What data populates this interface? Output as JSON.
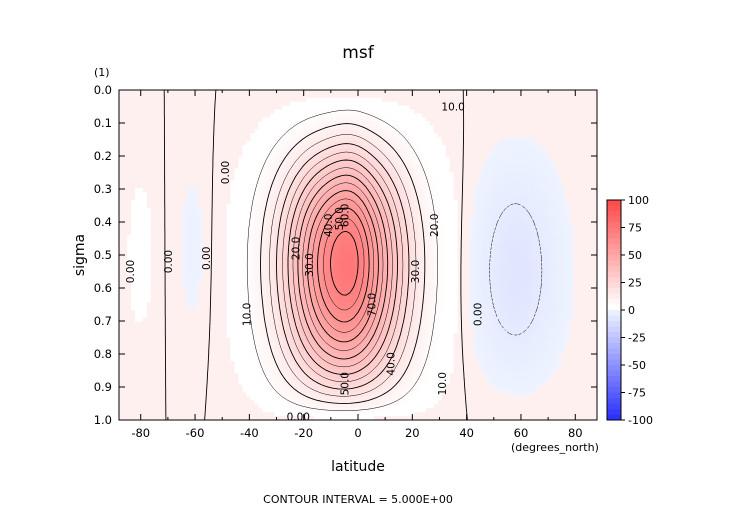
{
  "chart_data": {
    "type": "heatmap",
    "title": "msf",
    "xlabel": "latitude",
    "ylabel": "sigma",
    "x_units": "(degrees_north)",
    "y_units": "(1)",
    "footer": "CONTOUR INTERVAL = 5.000E+00",
    "xlim": [
      -88,
      88
    ],
    "ylim": [
      1.0,
      0.0
    ],
    "y_reversed": true,
    "x_ticks": [
      -80,
      -60,
      -40,
      -20,
      0,
      20,
      40,
      60,
      80
    ],
    "x_tick_labels": [
      "-80",
      "-60",
      "-40",
      "-20",
      "0",
      "20",
      "40",
      "60",
      "80"
    ],
    "y_ticks": [
      0.0,
      0.1,
      0.2,
      0.3,
      0.4,
      0.5,
      0.6,
      0.7,
      0.8,
      0.9,
      1.0
    ],
    "y_tick_labels": [
      "0.0",
      "0.1",
      "0.2",
      "0.3",
      "0.4",
      "0.5",
      "0.6",
      "0.7",
      "0.8",
      "0.9",
      "1.0"
    ],
    "contour_interval": 5,
    "colorbar": {
      "min": -100,
      "max": 100,
      "ticks": [
        100,
        75,
        50,
        25,
        0,
        -25,
        -50,
        -75,
        -100
      ],
      "tick_labels": [
        "100",
        "75",
        "50",
        "25",
        "0",
        "-25",
        "-50",
        "-75",
        "-100"
      ],
      "colors": {
        "negative": "#0000ff",
        "zero": "#ffffff",
        "positive": "#ff0000"
      }
    },
    "features": [
      {
        "type": "max",
        "lat": -5,
        "sigma": 0.73,
        "value": 74
      },
      {
        "type": "min",
        "lat": 60,
        "sigma": 0.6,
        "value": -8
      },
      {
        "type": "max",
        "lat": -82,
        "sigma": 0.5,
        "value": 1.5
      },
      {
        "type": "min",
        "lat": -62,
        "sigma": 0.45,
        "value": -1.5
      },
      {
        "type": "max",
        "lat": -2,
        "sigma": 0.3,
        "value": 4
      }
    ],
    "contour_labels": [
      {
        "text": "10.0",
        "lat": 35,
        "sigma": 0.05
      },
      {
        "text": "0.00",
        "lat": -49,
        "sigma": 0.25
      },
      {
        "text": "20.0",
        "lat": -23,
        "sigma": 0.48
      },
      {
        "text": "30.0",
        "lat": -18,
        "sigma": 0.53
      },
      {
        "text": "40.0",
        "lat": -11,
        "sigma": 0.41
      },
      {
        "text": "50.0",
        "lat": -7,
        "sigma": 0.39
      },
      {
        "text": "60.0",
        "lat": -5,
        "sigma": 0.38
      },
      {
        "text": "20.0",
        "lat": 28,
        "sigma": 0.41
      },
      {
        "text": "30.0",
        "lat": 21,
        "sigma": 0.55
      },
      {
        "text": "70.0",
        "lat": 5,
        "sigma": 0.65
      },
      {
        "text": "0.00",
        "lat": -84,
        "sigma": 0.55
      },
      {
        "text": "0.00",
        "lat": -70,
        "sigma": 0.52
      },
      {
        "text": "0.00",
        "lat": -56,
        "sigma": 0.51
      },
      {
        "text": "10.0",
        "lat": -41,
        "sigma": 0.68
      },
      {
        "text": "0.00",
        "lat": 44,
        "sigma": 0.68
      },
      {
        "text": "40.0",
        "lat": 12,
        "sigma": 0.83
      },
      {
        "text": "50.0",
        "lat": -5,
        "sigma": 0.89
      },
      {
        "text": "10.0",
        "lat": 31,
        "sigma": 0.89
      },
      {
        "text": "0.00",
        "lat": -22,
        "sigma": 0.99
      }
    ]
  }
}
